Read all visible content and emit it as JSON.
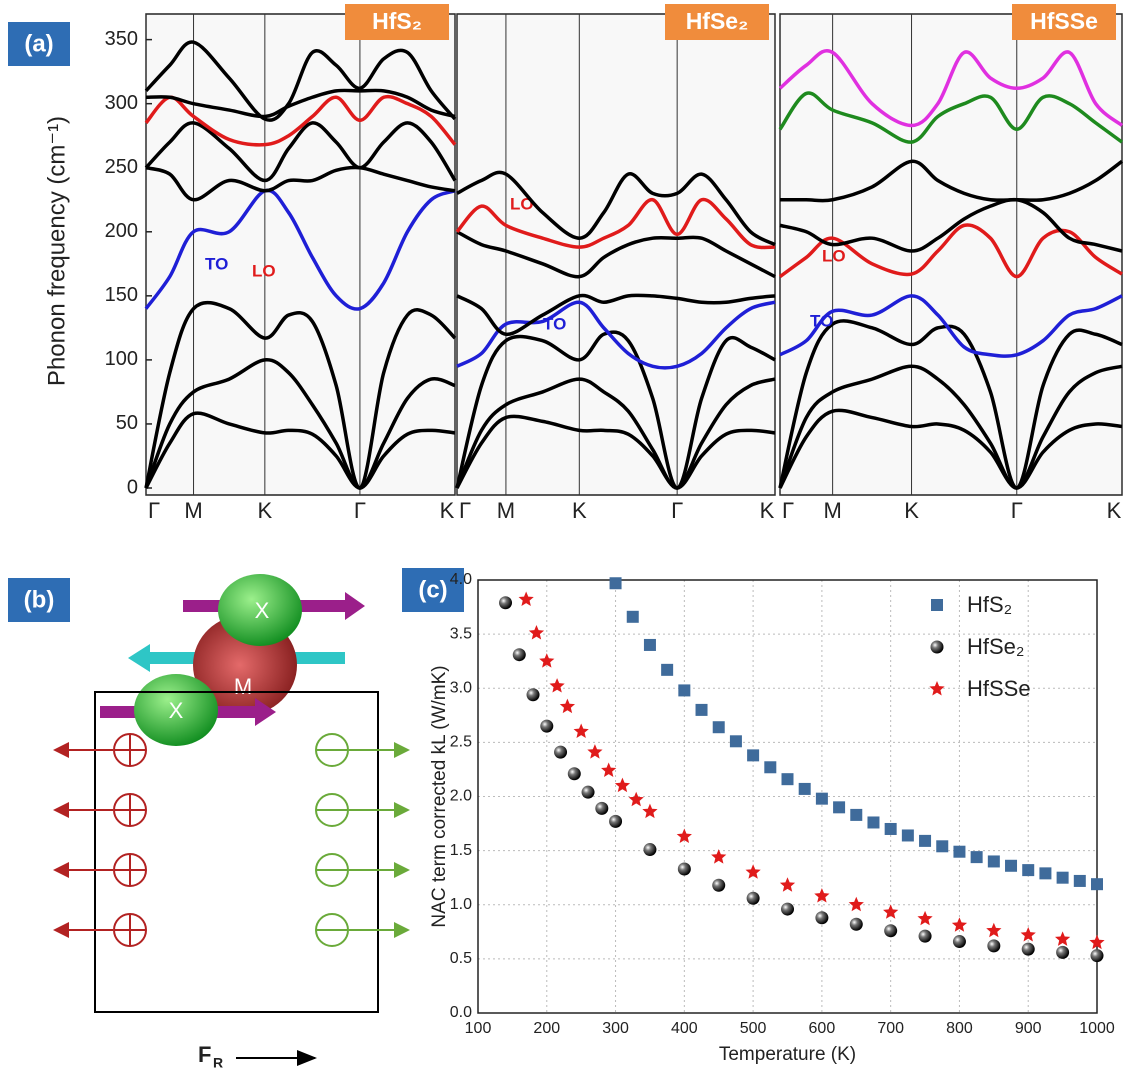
{
  "panel_labels": [
    "(a)",
    "(b)",
    "(c)"
  ],
  "diagram": {
    "atoms": [
      "X",
      "M",
      "X"
    ],
    "force": {
      "symbol": "F",
      "subscript": "R"
    }
  },
  "chart_data": [
    {
      "type": "line",
      "title": "HfS₂",
      "ylabel": "Phonon frequency (cm⁻¹)",
      "x": [
        0,
        0.25,
        0.5,
        0.875,
        1.25,
        1.5,
        1.75,
        2,
        2.25,
        2.5,
        2.75,
        3,
        3.25
      ],
      "xlim": [
        0,
        3.25
      ],
      "xticks": [
        {
          "value": 0,
          "label": "Γ"
        },
        {
          "value": 0.5,
          "label": "M"
        },
        {
          "value": 1.25,
          "label": "K"
        },
        {
          "value": 2.25,
          "label": "Γ"
        },
        {
          "value": 3.25,
          "label": "K"
        }
      ],
      "ylim": [
        0,
        370
      ],
      "yticks": [
        0,
        50,
        100,
        150,
        200,
        250,
        300,
        350
      ],
      "series": [
        {
          "color": "#000000",
          "values": [
            0,
            35,
            58,
            50,
            43,
            45,
            42,
            25,
            0,
            25,
            42,
            45,
            43
          ]
        },
        {
          "color": "#000000",
          "values": [
            0,
            50,
            75,
            85,
            100,
            90,
            65,
            35,
            0,
            35,
            70,
            85,
            80
          ]
        },
        {
          "color": "#000000",
          "values": [
            0,
            90,
            140,
            140,
            117,
            135,
            130,
            80,
            0,
            90,
            135,
            135,
            117
          ]
        },
        {
          "color": "#1f1fd6",
          "label": "TO",
          "values": [
            140,
            165,
            200,
            200,
            232,
            215,
            180,
            150,
            140,
            160,
            200,
            225,
            232
          ]
        },
        {
          "color": "#000000",
          "values": [
            250,
            245,
            225,
            240,
            232,
            240,
            240,
            248,
            250,
            245,
            240,
            235,
            232
          ]
        },
        {
          "color": "#000000",
          "values": [
            250,
            270,
            285,
            265,
            240,
            265,
            285,
            270,
            250,
            270,
            285,
            270,
            240
          ]
        },
        {
          "color": "#e01b1b",
          "label": "LO",
          "values": [
            285,
            305,
            290,
            272,
            268,
            275,
            290,
            305,
            287,
            305,
            300,
            290,
            268
          ]
        },
        {
          "color": "#000000",
          "values": [
            310,
            330,
            348,
            320,
            288,
            300,
            340,
            330,
            312,
            335,
            340,
            310,
            288
          ]
        },
        {
          "color": "#000000",
          "values": [
            305,
            305,
            300,
            295,
            290,
            298,
            305,
            310,
            310,
            310,
            305,
            295,
            290
          ]
        }
      ]
    },
    {
      "type": "line",
      "title": "HfSe₂",
      "x": [
        0,
        0.25,
        0.5,
        0.875,
        1.25,
        1.5,
        1.75,
        2,
        2.25,
        2.5,
        2.75,
        3,
        3.25
      ],
      "xlim": [
        0,
        3.25
      ],
      "xticks": [
        {
          "value": 0,
          "label": "Γ"
        },
        {
          "value": 0.5,
          "label": "M"
        },
        {
          "value": 1.25,
          "label": "K"
        },
        {
          "value": 2.25,
          "label": "Γ"
        },
        {
          "value": 3.25,
          "label": "K"
        }
      ],
      "ylim": [
        0,
        370
      ],
      "series": [
        {
          "color": "#000000",
          "values": [
            0,
            35,
            55,
            52,
            45,
            45,
            42,
            25,
            0,
            25,
            42,
            45,
            43
          ]
        },
        {
          "color": "#000000",
          "values": [
            0,
            45,
            65,
            75,
            85,
            75,
            60,
            30,
            0,
            35,
            65,
            80,
            85
          ]
        },
        {
          "color": "#000000",
          "values": [
            0,
            80,
            115,
            115,
            100,
            120,
            115,
            70,
            0,
            70,
            115,
            110,
            100
          ]
        },
        {
          "color": "#1f1fd6",
          "label": "TO",
          "values": [
            95,
            105,
            128,
            130,
            145,
            125,
            105,
            95,
            95,
            105,
            125,
            140,
            145
          ]
        },
        {
          "color": "#000000",
          "values": [
            150,
            140,
            120,
            135,
            150,
            145,
            150,
            150,
            148,
            145,
            145,
            148,
            150
          ]
        },
        {
          "color": "#000000",
          "values": [
            200,
            190,
            185,
            175,
            165,
            180,
            190,
            195,
            195,
            195,
            185,
            175,
            165
          ]
        },
        {
          "color": "#e01b1b",
          "label": "LO",
          "values": [
            200,
            220,
            205,
            195,
            188,
            195,
            205,
            225,
            198,
            225,
            210,
            190,
            188
          ]
        },
        {
          "color": "#000000",
          "values": [
            230,
            240,
            245,
            215,
            195,
            215,
            245,
            230,
            230,
            245,
            225,
            200,
            190
          ]
        }
      ]
    },
    {
      "type": "line",
      "title": "HfSSe",
      "x": [
        0,
        0.25,
        0.5,
        0.875,
        1.25,
        1.5,
        1.75,
        2,
        2.25,
        2.5,
        2.75,
        3,
        3.25
      ],
      "xlim": [
        0,
        3.25
      ],
      "xticks": [
        {
          "value": 0,
          "label": "Γ"
        },
        {
          "value": 0.5,
          "label": "M"
        },
        {
          "value": 1.25,
          "label": "K"
        },
        {
          "value": 2.25,
          "label": "Γ"
        },
        {
          "value": 3.25,
          "label": "K"
        }
      ],
      "ylim": [
        0,
        370
      ],
      "series": [
        {
          "color": "#000000",
          "values": [
            0,
            40,
            60,
            55,
            48,
            50,
            45,
            28,
            0,
            28,
            45,
            50,
            48
          ]
        },
        {
          "color": "#000000",
          "values": [
            0,
            55,
            75,
            85,
            95,
            85,
            65,
            35,
            0,
            40,
            75,
            90,
            95
          ]
        },
        {
          "color": "#000000",
          "values": [
            0,
            90,
            128,
            125,
            112,
            125,
            120,
            75,
            0,
            80,
            120,
            120,
            112
          ]
        },
        {
          "color": "#1f1fd6",
          "label": "TO",
          "values": [
            104,
            115,
            138,
            135,
            150,
            135,
            110,
            104,
            104,
            115,
            135,
            140,
            150
          ]
        },
        {
          "color": "#e01b1b",
          "label": "LO",
          "values": [
            165,
            180,
            195,
            175,
            167,
            185,
            205,
            195,
            165,
            195,
            200,
            180,
            167
          ]
        },
        {
          "color": "#000000",
          "values": [
            205,
            200,
            190,
            195,
            185,
            195,
            210,
            220,
            225,
            215,
            195,
            190,
            185
          ]
        },
        {
          "color": "#000000",
          "values": [
            225,
            225,
            225,
            235,
            255,
            240,
            230,
            225,
            225,
            225,
            230,
            240,
            255
          ]
        },
        {
          "color": "#1e8a1e",
          "values": [
            280,
            308,
            295,
            285,
            270,
            290,
            300,
            305,
            280,
            305,
            300,
            285,
            270
          ]
        },
        {
          "color": "#e030e0",
          "values": [
            312,
            330,
            340,
            300,
            283,
            300,
            340,
            320,
            312,
            320,
            340,
            300,
            283
          ]
        }
      ]
    },
    {
      "type": "scatter",
      "xlabel": "Temperature (K)",
      "ylabel": "NAC term corrected kL (W/mK)",
      "xlim": [
        100,
        1000
      ],
      "xticks": [
        100,
        200,
        300,
        400,
        500,
        600,
        700,
        800,
        900,
        1000
      ],
      "ylim": [
        0,
        4
      ],
      "yticks": [
        {
          "value": 0,
          "label": "0.0"
        },
        0.5,
        {
          "value": 1,
          "label": "1.0"
        },
        1.5,
        {
          "value": 2,
          "label": "2.0"
        },
        2.5,
        {
          "value": 3,
          "label": "3.0"
        },
        3.5,
        {
          "value": 4,
          "label": "4.0"
        }
      ],
      "grid": true,
      "legend": "upper right",
      "series": [
        {
          "name": "HfS₂",
          "color": "#3f6b9b",
          "marker": "square",
          "x": [
            300,
            325,
            350,
            375,
            400,
            425,
            450,
            475,
            500,
            525,
            550,
            575,
            600,
            625,
            650,
            675,
            700,
            725,
            750,
            775,
            800,
            825,
            850,
            875,
            900,
            925,
            950,
            975,
            1000
          ],
          "values": [
            3.97,
            3.66,
            3.4,
            3.17,
            2.98,
            2.8,
            2.64,
            2.51,
            2.38,
            2.27,
            2.16,
            2.07,
            1.98,
            1.9,
            1.83,
            1.76,
            1.7,
            1.64,
            1.59,
            1.54,
            1.49,
            1.44,
            1.4,
            1.36,
            1.32,
            1.29,
            1.25,
            1.22,
            1.19
          ]
        },
        {
          "name": "HfSe₂",
          "color": "#111111",
          "marker": "sphere",
          "x": [
            140,
            160,
            180,
            200,
            220,
            240,
            260,
            280,
            300,
            350,
            400,
            450,
            500,
            550,
            600,
            650,
            700,
            750,
            800,
            850,
            900,
            950,
            1000
          ],
          "values": [
            3.79,
            3.31,
            2.94,
            2.65,
            2.41,
            2.21,
            2.04,
            1.89,
            1.77,
            1.51,
            1.33,
            1.18,
            1.06,
            0.96,
            0.88,
            0.82,
            0.76,
            0.71,
            0.66,
            0.62,
            0.59,
            0.56,
            0.53
          ]
        },
        {
          "name": "HfSSe",
          "color": "#e01b1b",
          "marker": "star",
          "x": [
            170,
            185,
            200,
            215,
            230,
            250,
            270,
            290,
            310,
            330,
            350,
            400,
            450,
            500,
            550,
            600,
            650,
            700,
            750,
            800,
            850,
            900,
            950,
            1000
          ],
          "values": [
            3.82,
            3.51,
            3.25,
            3.02,
            2.83,
            2.6,
            2.41,
            2.24,
            2.1,
            1.97,
            1.86,
            1.63,
            1.44,
            1.3,
            1.18,
            1.08,
            1.0,
            0.93,
            0.87,
            0.81,
            0.76,
            0.72,
            0.68,
            0.65
          ]
        }
      ]
    }
  ]
}
